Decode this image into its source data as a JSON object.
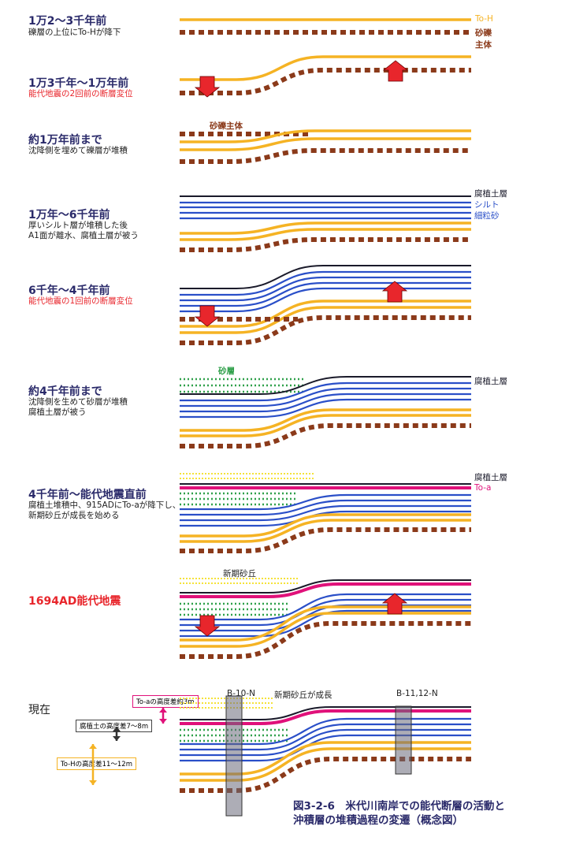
{
  "stages": [
    {
      "title": "1万2〜3千年前",
      "desc": [
        "礫層の上位にTo-Hが降下"
      ],
      "title_red": false,
      "desc_red": false
    },
    {
      "title": "1万3千年〜1万年前",
      "desc": [
        "能代地震の2回前の断層変位"
      ],
      "title_red": false,
      "desc_red": true
    },
    {
      "title": "約1万年前まで",
      "desc": [
        "沈降側を埋めて礫層が堆積"
      ],
      "title_red": false,
      "desc_red": false
    },
    {
      "title": "1万年〜6千年前",
      "desc": [
        "厚いシルト層が堆積した後",
        "A1面が離水、腐植土層が被う"
      ],
      "title_red": false,
      "desc_red": false
    },
    {
      "title": "6千年〜4千年前",
      "desc": [
        "能代地震の1回前の断層変位"
      ],
      "title_red": false,
      "desc_red": true
    },
    {
      "title": "約4千年前まで",
      "desc": [
        "沈降側を生めて砂層が堆積",
        "腐植土層が被う"
      ],
      "title_red": false,
      "desc_red": false
    },
    {
      "title": "4千年前〜能代地震直前",
      "desc": [
        "腐植土堆積中、915ADにTo-aが降下し、",
        "新期砂丘が成長を始める"
      ],
      "title_red": false,
      "desc_red": false
    },
    {
      "title": "1694AD能代地震",
      "desc": [],
      "title_red": true,
      "desc_red": false
    },
    {
      "title": "現在",
      "desc": [],
      "title_red": false,
      "desc_red": false
    }
  ],
  "labels": {
    "to_h": "To-H",
    "gravel_main_1": "砂礫",
    "gravel_main_2": "主体",
    "gravel_main_inline": "砂礫主体",
    "humus": "腐植土層",
    "silt": "シルト",
    "fine_sand": "細粒砂",
    "sand_layer": "砂層",
    "humus_2": "腐植土層",
    "humus_3": "腐植土層",
    "to_a": "To-a",
    "new_dune": "新期砂丘",
    "new_dune_growth": "新期砂丘が成長",
    "b10": "B-10-N",
    "b11": "B-11,12-N",
    "toa_height": "To-aの高度差約3m",
    "humus_height": "腐植土の高度差7〜8m",
    "toh_height": "To-Hの高度差11〜12m"
  },
  "caption": {
    "line1": "図3-2-6　米代川南岸での能代断層の活動と",
    "line2": "沖積層の堆積過程の変遷（概念図）"
  },
  "colors": {
    "to_h": "#f5b324",
    "gravel": "#8b3a1a",
    "silt": "#2a4fc8",
    "humus": "#1a1a2a",
    "to_a": "#e0117a",
    "sand": "#2fa04a",
    "dune": "#f5e23a",
    "arrow": "#e8262c",
    "title": "#2a2a6a",
    "red_text": "#e8262c"
  }
}
